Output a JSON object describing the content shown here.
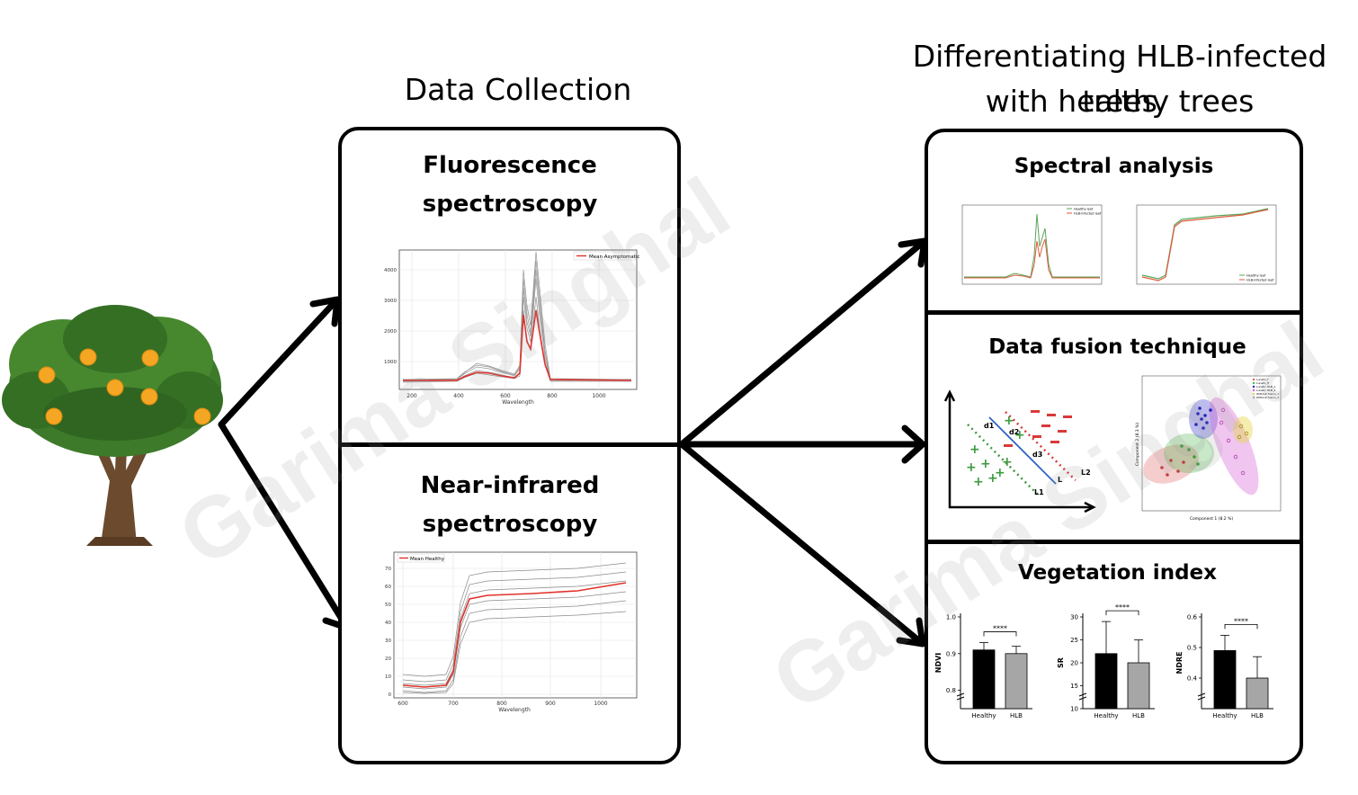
{
  "headings": {
    "left": "Data Collection",
    "right_line1": "Differentiating HLB-infected trees",
    "right_line2": "with healthy trees"
  },
  "left_panel": {
    "fluorescence": {
      "title_line1": "Fluorescence",
      "title_line2": "spectroscopy",
      "legend": "Mean Asymptomatic",
      "xlabel": "Wavelength",
      "xticks": [
        "200",
        "400",
        "600",
        "800",
        "1000"
      ],
      "yticks": [
        "1000",
        "2000",
        "3000",
        "4000"
      ]
    },
    "nir": {
      "title_line1": "Near-infrared",
      "title_line2": "spectroscopy",
      "legend": "Mean Healthy",
      "xlabel": "Wavelength",
      "xticks": [
        "600",
        "700",
        "800",
        "900",
        "1000"
      ],
      "yticks": [
        "0",
        "10",
        "20",
        "30",
        "40",
        "50",
        "60",
        "70"
      ]
    }
  },
  "right_panel": {
    "spectral": {
      "title": "Spectral analysis",
      "legend_a": [
        "Healthy leaf",
        "HLB-infected leaf"
      ],
      "legend_b": [
        "Healthy leaf",
        "HLB-infected leaf"
      ]
    },
    "fusion": {
      "title": "Data fusion technique",
      "labels": {
        "d1": "d1",
        "d2": "d2",
        "d3": "d3",
        "L": "L",
        "L1": "L1",
        "L2": "L2"
      },
      "pca_xlabel": "Component 1 (8.2 %)",
      "pca_ylabel": "Component 2 (8.3 %)",
      "pca_legend": [
        "Lunatic_f",
        "Lunatic_fl",
        "Lunatic HLB_1",
        "Lunatic HLB_2",
        "Without fusion_1",
        "Without fusion_2"
      ],
      "pca_colors": [
        "#e05a5a",
        "#49b449",
        "#2020c0",
        "#d45ad4",
        "#e6d84a",
        "#aaaaaa"
      ]
    },
    "vegetation": {
      "title": "Vegetation index",
      "significance": "****",
      "categories": [
        "Healthy",
        "HLB"
      ],
      "charts": [
        {
          "ylabel": "NDVI",
          "yticks": [
            "0.8",
            "0.9",
            "1.0"
          ]
        },
        {
          "ylabel": "SR",
          "yticks": [
            "10",
            "15",
            "20",
            "25",
            "30"
          ]
        },
        {
          "ylabel": "NDRE",
          "yticks": [
            "0.4",
            "0.5",
            "0.6"
          ]
        }
      ]
    }
  },
  "watermark": "Garima Singhal",
  "chart_data": [
    {
      "type": "bar",
      "categories": [
        "Healthy",
        "HLB"
      ],
      "values": [
        0.91,
        0.9
      ],
      "errors": [
        0.02,
        0.02
      ],
      "ylabel": "NDVI",
      "ylim": [
        0.75,
        1.0
      ]
    },
    {
      "type": "bar",
      "categories": [
        "Healthy",
        "HLB"
      ],
      "values": [
        22,
        20
      ],
      "errors": [
        7,
        5
      ],
      "ylabel": "SR",
      "ylim": [
        10,
        30
      ]
    },
    {
      "type": "bar",
      "categories": [
        "Healthy",
        "HLB"
      ],
      "values": [
        0.49,
        0.4
      ],
      "errors": [
        0.05,
        0.07
      ],
      "ylabel": "NDRE",
      "ylim": [
        0.3,
        0.6
      ]
    }
  ],
  "colors": {
    "mean_line": "#e0322c",
    "sample_lines": "#8a8a8a",
    "healthy_bar": "#000000",
    "hlb_bar": "#a6a6a6",
    "fusion_blue": "#2b63c8",
    "fusion_red": "#d83a3a",
    "fusion_green": "#3e9a3e"
  }
}
